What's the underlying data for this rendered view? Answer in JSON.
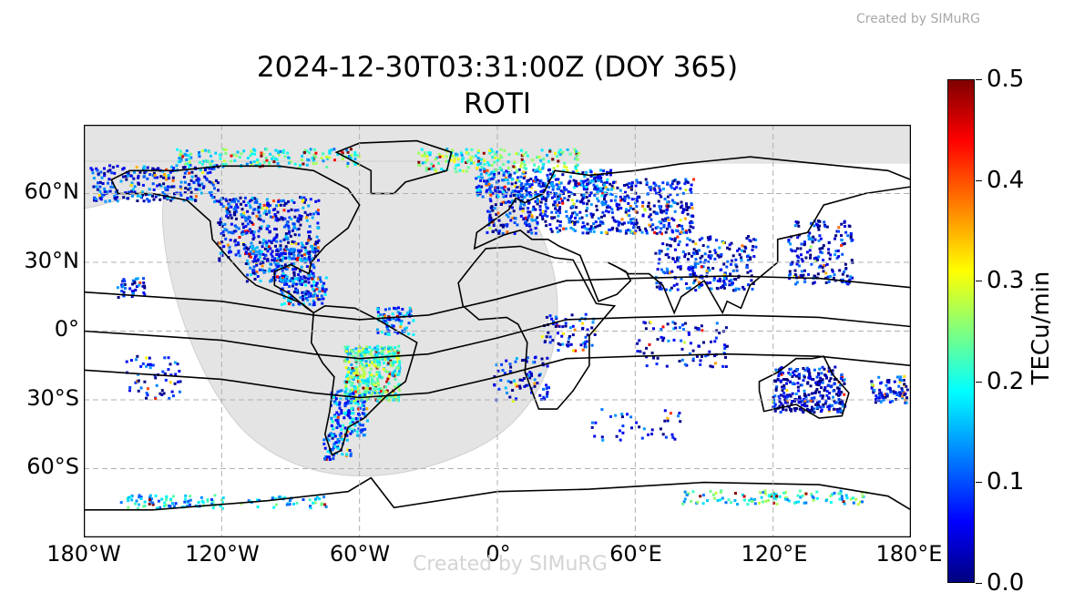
{
  "watermark": "Created by SIMuRG",
  "title": {
    "line1": "2024-12-30T03:31:00Z (DOY 365)",
    "line2": "ROTI"
  },
  "axes": {
    "lat_ticks": [
      "60°N",
      "30°N",
      "0°",
      "30°S",
      "60°S"
    ],
    "lon_ticks": [
      "180°W",
      "120°W",
      "60°W",
      "0°",
      "60°E",
      "120°E",
      "180°E"
    ],
    "lon_range": [
      -180,
      180
    ],
    "lat_range": [
      -90,
      90
    ],
    "grid": true
  },
  "colorbar": {
    "label": "TECu/min",
    "colormap": "jet",
    "range": [
      0.0,
      0.5
    ],
    "ticks": [
      "0.0",
      "0.1",
      "0.2",
      "0.3",
      "0.4",
      "0.5"
    ]
  },
  "colors": {
    "night_shade": "#e4e4e4",
    "coastline": "#000000",
    "grid": "#b0b0b0"
  },
  "legend": {
    "night_shade": "nighttime / shaded polar regions",
    "black_curves": "magnetic equator and crests"
  }
}
